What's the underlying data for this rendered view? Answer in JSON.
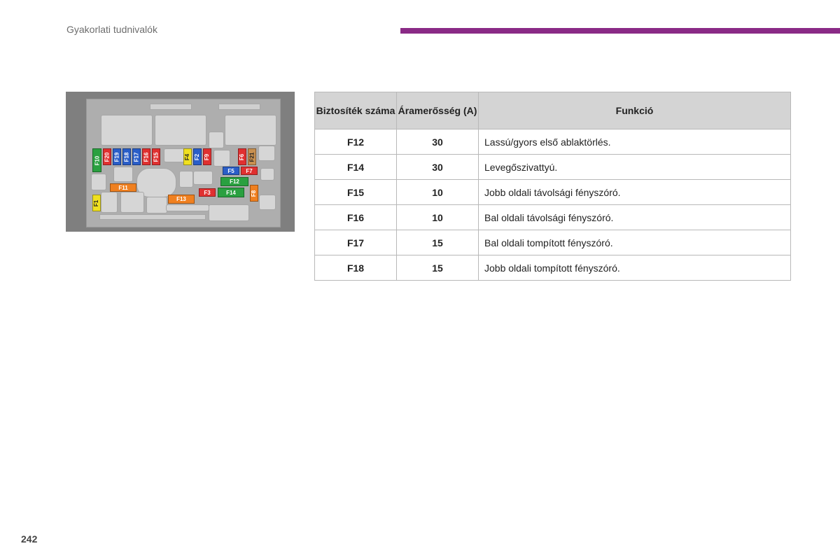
{
  "header": {
    "title": "Gyakorlati tudnivalók"
  },
  "page_number": "242",
  "colors": {
    "accent": "#8a2a86",
    "table_header_bg": "#d4d4d4"
  },
  "fusebox": {
    "fuses": [
      {
        "label": "F10",
        "color": "#2aa040"
      },
      {
        "label": "F20",
        "color": "#e03030"
      },
      {
        "label": "F19",
        "color": "#2a5ec8"
      },
      {
        "label": "F18",
        "color": "#2a5ec8"
      },
      {
        "label": "F17",
        "color": "#2a5ec8"
      },
      {
        "label": "F16",
        "color": "#e03030"
      },
      {
        "label": "F15",
        "color": "#e03030"
      },
      {
        "label": "F4",
        "color": "#f0e020"
      },
      {
        "label": "F2",
        "color": "#2a5ec8"
      },
      {
        "label": "F9",
        "color": "#e03030"
      },
      {
        "label": "F6",
        "color": "#e03030"
      },
      {
        "label": "F21",
        "color": "#c89050"
      },
      {
        "label": "F5",
        "color": "#2a5ec8"
      },
      {
        "label": "F7",
        "color": "#e03030"
      },
      {
        "label": "F12",
        "color": "#2aa040"
      },
      {
        "label": "F11",
        "color": "#f08020"
      },
      {
        "label": "F3",
        "color": "#e03030"
      },
      {
        "label": "F14",
        "color": "#2aa040"
      },
      {
        "label": "F8",
        "color": "#f08020"
      },
      {
        "label": "F1",
        "color": "#f0e020"
      },
      {
        "label": "F13",
        "color": "#f08020"
      }
    ]
  },
  "table": {
    "headers": [
      "Biztosíték száma",
      "Áramerősség (A)",
      "Funkció"
    ],
    "rows": [
      {
        "fuse": "F12",
        "amp": "30",
        "function": "Lassú/gyors első ablaktörlés."
      },
      {
        "fuse": "F14",
        "amp": "30",
        "function": "Levegőszivattyú."
      },
      {
        "fuse": "F15",
        "amp": "10",
        "function": "Jobb oldali távolsági fényszóró."
      },
      {
        "fuse": "F16",
        "amp": "10",
        "function": "Bal oldali távolsági fényszóró."
      },
      {
        "fuse": "F17",
        "amp": "15",
        "function": "Bal oldali tompított fényszóró."
      },
      {
        "fuse": "F18",
        "amp": "15",
        "function": "Jobb oldali tompított fényszóró."
      }
    ]
  }
}
